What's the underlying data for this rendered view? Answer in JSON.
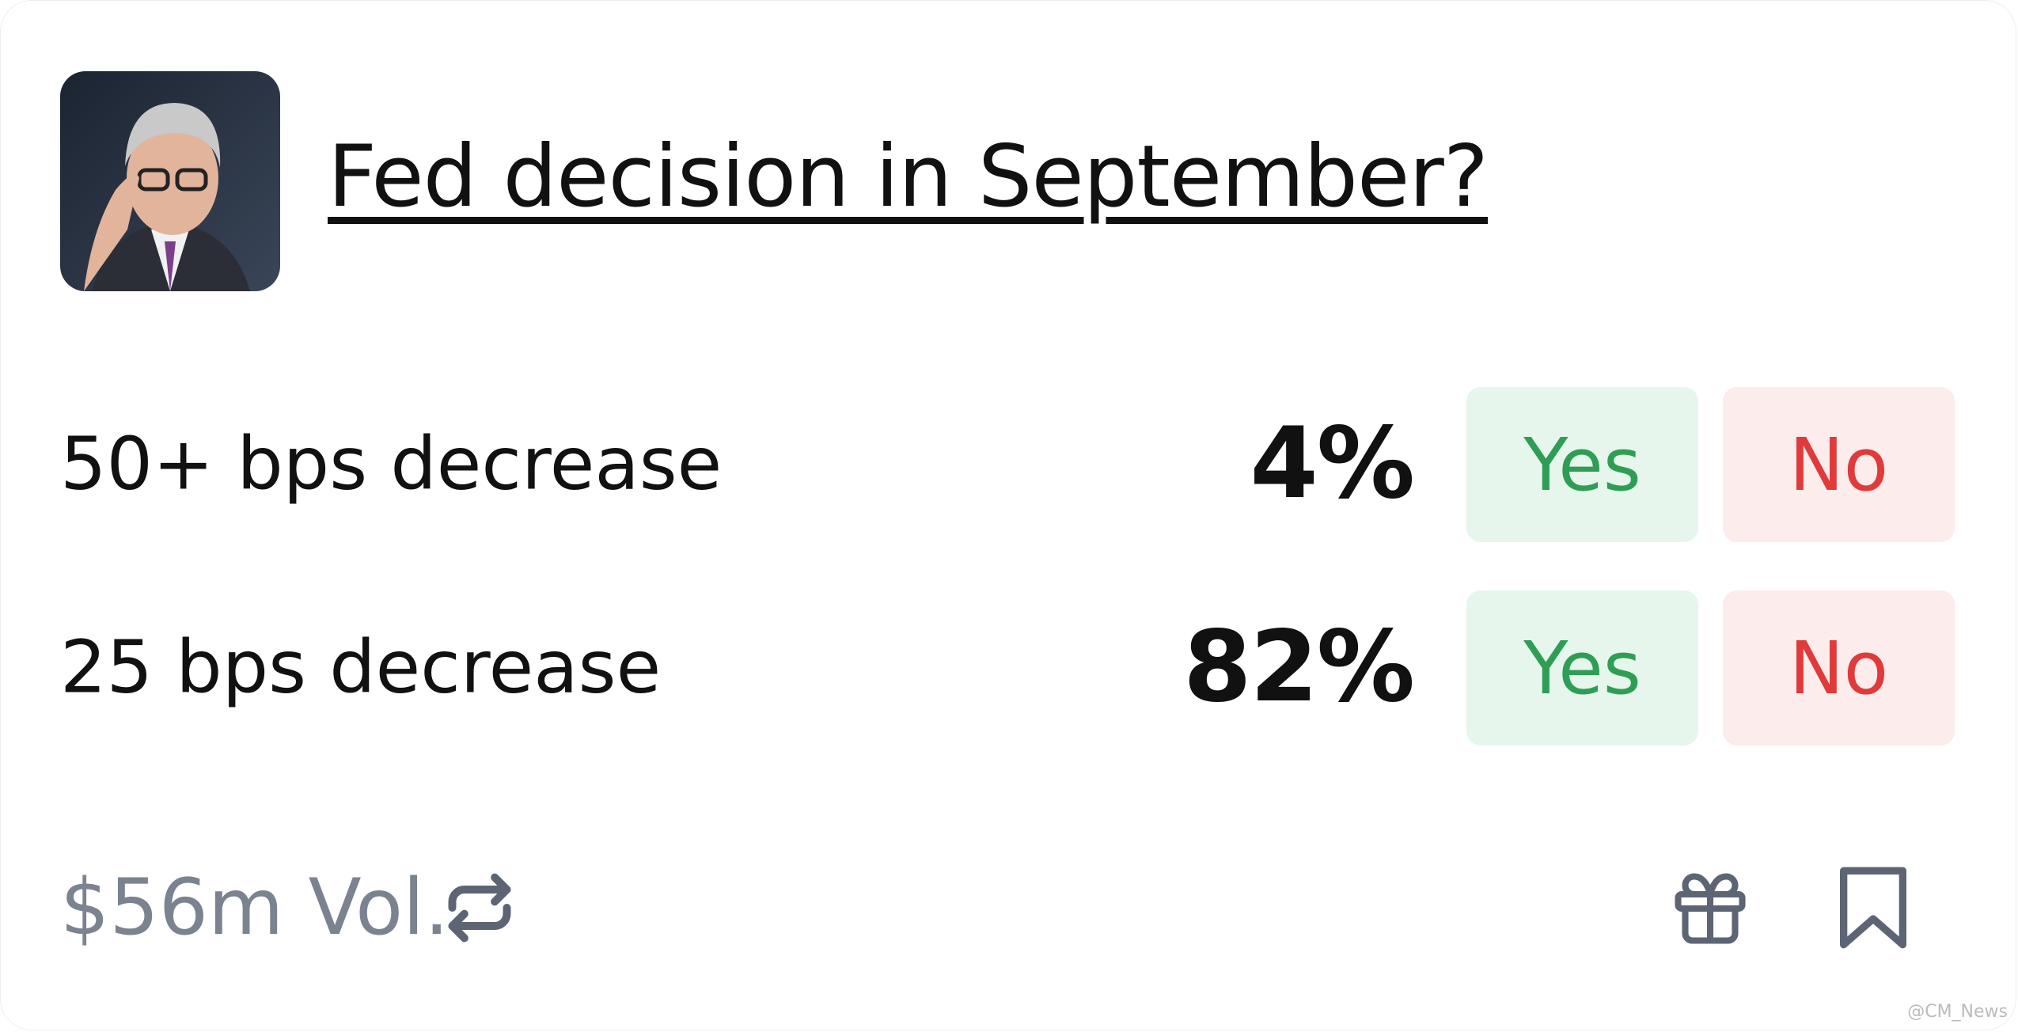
{
  "header": {
    "title": "Fed decision in September?"
  },
  "outcomes": [
    {
      "label": "50+ bps decrease",
      "probability": "4%",
      "yes": "Yes",
      "no": "No"
    },
    {
      "label": "25 bps decrease",
      "probability": "82%",
      "yes": "Yes",
      "no": "No"
    }
  ],
  "footer": {
    "volume": "$56m Vol.",
    "watermark": "@CM_News"
  }
}
